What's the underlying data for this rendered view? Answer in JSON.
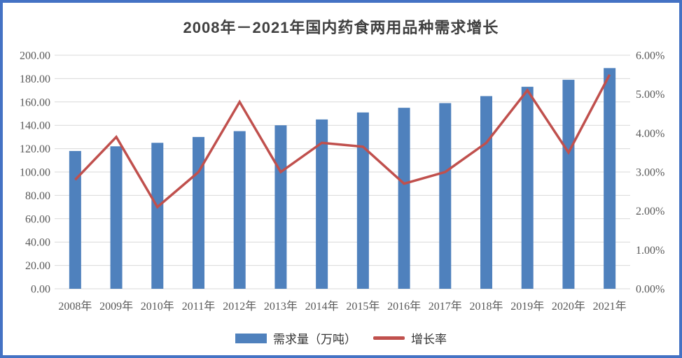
{
  "title": "2008年－2021年国内药食两用品种需求增长",
  "colors": {
    "frame_border": "#4472C4",
    "background": "#FFFFFF",
    "bar": "#4F81BD",
    "line": "#C0504D",
    "gridline": "#D9D9D9",
    "axis_text": "#595959",
    "title_text": "#404040"
  },
  "chart_data": {
    "type": "bar+line",
    "title": "2008年－2021年国内药食两用品种需求增长",
    "xlabel": "",
    "ylabel_left": "",
    "ylabel_right": "",
    "grid": "horizontal",
    "legend_position": "bottom",
    "categories": [
      "2008年",
      "2009年",
      "2010年",
      "2011年",
      "2012年",
      "2013年",
      "2014年",
      "2015年",
      "2016年",
      "2017年",
      "2018年",
      "2019年",
      "2020年",
      "2021年"
    ],
    "series": [
      {
        "name": "需求量（万吨）",
        "type": "bar",
        "axis": "left",
        "color": "#4F81BD",
        "values": [
          118,
          122,
          125,
          130,
          135,
          140,
          145,
          151,
          155,
          159,
          165,
          173,
          179,
          189
        ]
      },
      {
        "name": "增长率",
        "type": "line",
        "axis": "right",
        "color": "#C0504D",
        "values": [
          2.8,
          3.9,
          2.1,
          3.0,
          4.8,
          3.0,
          3.75,
          3.65,
          2.7,
          3.0,
          3.75,
          5.1,
          3.5,
          5.5
        ]
      }
    ],
    "left_axis": {
      "min": 0,
      "max": 200,
      "step": 20,
      "tick_labels": [
        "0.00",
        "20.00",
        "40.00",
        "60.00",
        "80.00",
        "100.00",
        "120.00",
        "140.00",
        "160.00",
        "180.00",
        "200.00"
      ]
    },
    "right_axis": {
      "min": 0,
      "max": 6,
      "step": 1,
      "tick_labels": [
        "0.00%",
        "1.00%",
        "2.00%",
        "3.00%",
        "4.00%",
        "5.00%",
        "6.00%"
      ]
    }
  },
  "legend": {
    "items": [
      {
        "label": "需求量（万吨）"
      },
      {
        "label": "增长率"
      }
    ]
  }
}
